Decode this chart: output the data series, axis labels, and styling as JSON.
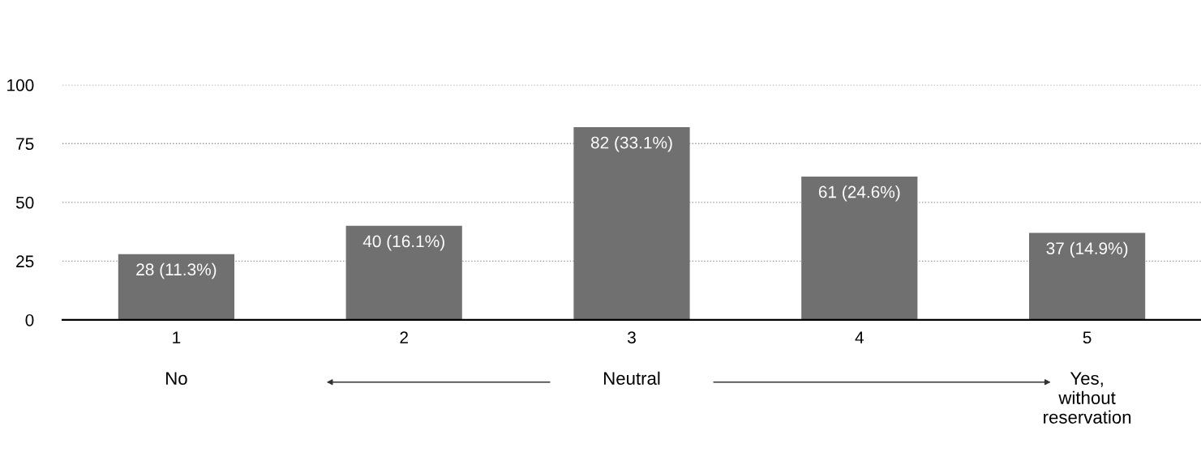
{
  "chart_data": {
    "type": "bar",
    "categories": [
      "1",
      "2",
      "3",
      "4",
      "5"
    ],
    "values": [
      28,
      40,
      82,
      61,
      37
    ],
    "value_labels": [
      "28 (11.3%)",
      "40 (16.1%)",
      "82 (33.1%)",
      "61 (24.6%)",
      "37 (14.9%)"
    ],
    "color": "#707070",
    "ylim": [
      0,
      100
    ],
    "yticks": [
      0,
      25,
      50,
      75,
      100
    ],
    "grid": "y",
    "annotations": [
      "No",
      "Neutral",
      "Yes,\nwithout\nreservation"
    ]
  }
}
